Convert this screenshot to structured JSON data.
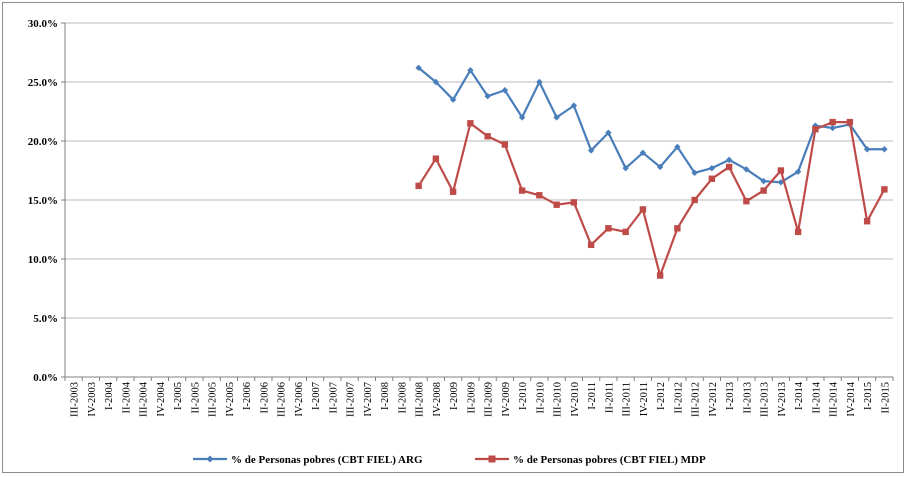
{
  "chart_data": {
    "type": "line",
    "title": "",
    "xlabel": "",
    "ylabel": "",
    "ylim": [
      0,
      30
    ],
    "yticks": [
      "0.0%",
      "5.0%",
      "10.0%",
      "15.0%",
      "20.0%",
      "25.0%",
      "30.0%"
    ],
    "grid": "horizontal",
    "legend_position": "bottom",
    "categories": [
      "III-2003",
      "IV-2003",
      "I-2004",
      "II-2004",
      "III-2004",
      "IV-2004",
      "I-2005",
      "II-2005",
      "III-2005",
      "IV-2005",
      "I-2006",
      "II-2006",
      "III-2006",
      "IV-2006",
      "I-2007",
      "II-2007",
      "III-2007",
      "IV-2007",
      "I-2008",
      "II-2008",
      "III-2008",
      "IV-2008",
      "I-2009",
      "II-2009",
      "III-2009",
      "IV-2009",
      "I-2010",
      "II-2010",
      "III-2010",
      "IV-2010",
      "I-2011",
      "II-2011",
      "III-2011",
      "IV-2011",
      "I-2012",
      "II-2012",
      "III-2012",
      "IV-2012",
      "I-2013",
      "II-2013",
      "III-2013",
      "IV-2013",
      "I-2014",
      "II-2014",
      "III-2014",
      "IV-2014",
      "I-2015",
      "II-2015"
    ],
    "series": [
      {
        "name": "% de Personas pobres (CBT FIEL) ARG",
        "color": "#4a7ebb",
        "marker": "diamond",
        "values": [
          null,
          null,
          null,
          null,
          null,
          null,
          null,
          null,
          null,
          null,
          null,
          null,
          null,
          null,
          null,
          null,
          null,
          null,
          null,
          null,
          26.2,
          25.0,
          23.5,
          26.0,
          23.8,
          24.3,
          22.0,
          25.0,
          22.0,
          23.0,
          19.2,
          20.7,
          17.7,
          19.0,
          17.8,
          19.5,
          17.3,
          17.7,
          18.4,
          17.6,
          16.6,
          16.5,
          17.4,
          21.3,
          21.1,
          21.4,
          19.3,
          19.3
        ]
      },
      {
        "name": "% de Personas pobres (CBT FIEL) MDP",
        "color": "#be4b48",
        "marker": "square",
        "values": [
          null,
          null,
          null,
          null,
          null,
          null,
          null,
          null,
          null,
          null,
          null,
          null,
          null,
          null,
          null,
          null,
          null,
          null,
          null,
          null,
          16.2,
          18.5,
          15.7,
          21.5,
          20.4,
          19.7,
          15.8,
          15.4,
          14.6,
          14.8,
          11.2,
          12.6,
          12.3,
          14.2,
          8.6,
          12.6,
          15.0,
          16.8,
          17.8,
          14.9,
          15.8,
          17.5,
          12.3,
          21.0,
          21.6,
          21.6,
          13.2,
          15.9
        ]
      }
    ]
  }
}
